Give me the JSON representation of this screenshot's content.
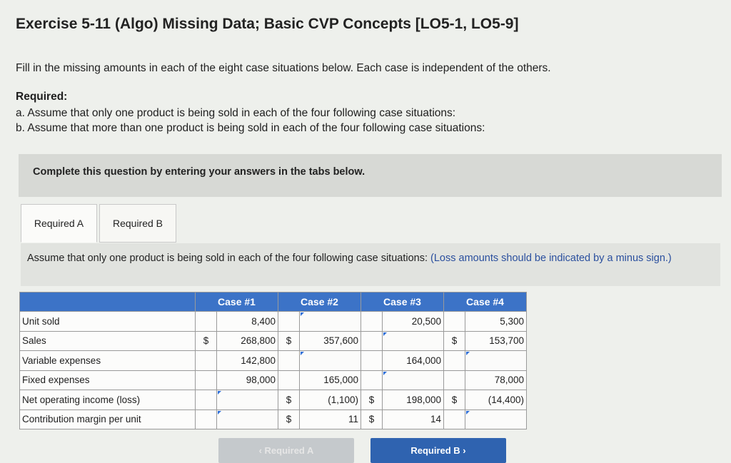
{
  "title": "Exercise 5-11 (Algo) Missing Data; Basic CVP Concepts [LO5-1, LO5-9]",
  "intro": "Fill in the missing amounts in each of the eight case situations below. Each case is independent of the others.",
  "required_label": "Required:",
  "required_a": "a. Assume that only one product is being sold in each of the four following case situations:",
  "required_b": "b. Assume that more than one product is being sold in each of the four following case situations:",
  "banner": "Complete this question by entering your answers in the tabs below.",
  "tabs": [
    {
      "label": "Required A"
    },
    {
      "label": "Required B"
    }
  ],
  "instruction": "Assume that only one product is being sold in each of the four following case situations: ",
  "instruction_note": "(Loss amounts should be indicated by a minus sign.)",
  "table": {
    "headers": [
      "",
      "Case #1",
      "Case #2",
      "Case #3",
      "Case #4"
    ],
    "rows": [
      {
        "label": "Unit sold",
        "cells": [
          {
            "dollar": "",
            "value": "8,400"
          },
          {
            "dollar": "",
            "value": ""
          },
          {
            "dollar": "",
            "value": "20,500"
          },
          {
            "dollar": "",
            "value": "5,300"
          }
        ]
      },
      {
        "label": "Sales",
        "cells": [
          {
            "dollar": "$",
            "value": "268,800"
          },
          {
            "dollar": "$",
            "value": "357,600"
          },
          {
            "dollar": "",
            "value": ""
          },
          {
            "dollar": "$",
            "value": "153,700"
          }
        ]
      },
      {
        "label": "Variable expenses",
        "cells": [
          {
            "dollar": "",
            "value": "142,800"
          },
          {
            "dollar": "",
            "value": ""
          },
          {
            "dollar": "",
            "value": "164,000"
          },
          {
            "dollar": "",
            "value": ""
          }
        ]
      },
      {
        "label": "Fixed expenses",
        "cells": [
          {
            "dollar": "",
            "value": "98,000"
          },
          {
            "dollar": "",
            "value": "165,000"
          },
          {
            "dollar": "",
            "value": ""
          },
          {
            "dollar": "",
            "value": "78,000"
          }
        ]
      },
      {
        "label": "Net operating income (loss)",
        "cells": [
          {
            "dollar": "",
            "value": ""
          },
          {
            "dollar": "$",
            "value": "(1,100)"
          },
          {
            "dollar": "$",
            "value": "198,000"
          },
          {
            "dollar": "$",
            "value": "(14,400)"
          }
        ]
      },
      {
        "label": "Contribution margin per unit",
        "cells": [
          {
            "dollar": "",
            "value": ""
          },
          {
            "dollar": "$",
            "value": "11"
          },
          {
            "dollar": "$",
            "value": "14"
          },
          {
            "dollar": "",
            "value": ""
          }
        ]
      }
    ]
  },
  "buttons": {
    "prev": "‹  Required A",
    "next": "Required B  ›"
  }
}
